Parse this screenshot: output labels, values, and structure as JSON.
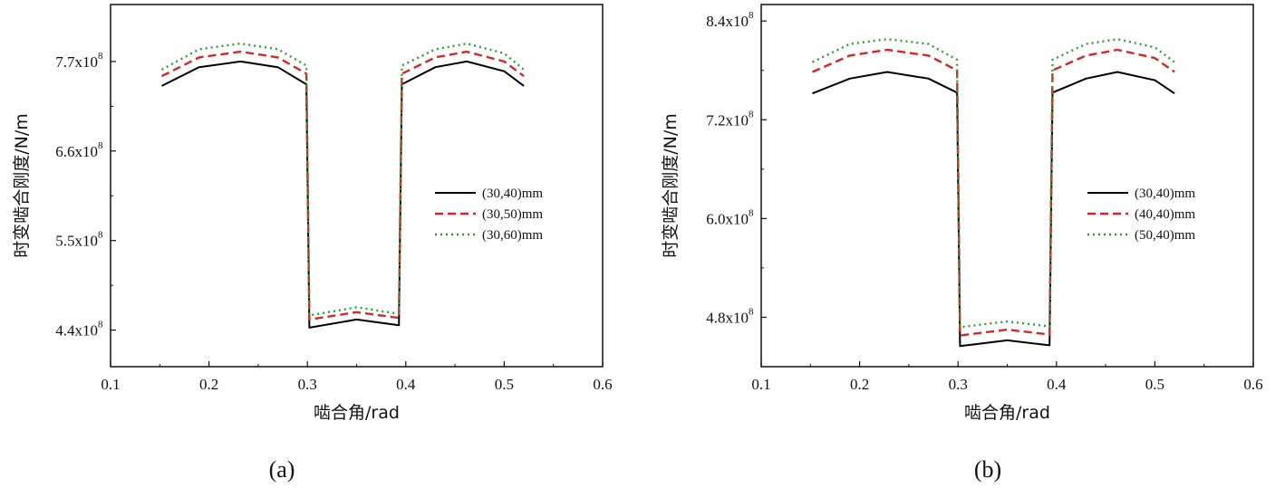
{
  "chart_data": [
    {
      "type": "line",
      "panel_label": "(a)",
      "xlabel": "啮合角/rad",
      "ylabel": "时变啮合刚度/N/m",
      "xlim": [
        0.1,
        0.6
      ],
      "ylim": [
        3.95,
        8.4
      ],
      "xticks": [
        0.1,
        0.2,
        0.3,
        0.4,
        0.5,
        0.6
      ],
      "xtick_labels": [
        "0.1",
        "0.2",
        "0.3",
        "0.4",
        "0.5",
        "0.6"
      ],
      "yticks": [
        4.4,
        5.5,
        6.6,
        7.7
      ],
      "ytick_labels": [
        "4.4x10",
        "5.5x10",
        "6.6x10",
        "7.7x10"
      ],
      "ytick_exponent": "8",
      "legend_position": "right",
      "series": [
        {
          "name": "(30,40)mm",
          "color": "#000000",
          "style": "solid",
          "x": [
            0.152,
            0.19,
            0.232,
            0.27,
            0.299,
            0.302,
            0.35,
            0.393,
            0.396,
            0.43,
            0.462,
            0.5,
            0.52
          ],
          "y": [
            7.4,
            7.63,
            7.7,
            7.63,
            7.42,
            4.43,
            4.53,
            4.46,
            7.42,
            7.63,
            7.7,
            7.58,
            7.4
          ]
        },
        {
          "name": "(30,50)mm",
          "color": "#d62728",
          "style": "dashed",
          "x": [
            0.152,
            0.19,
            0.232,
            0.27,
            0.299,
            0.302,
            0.35,
            0.393,
            0.396,
            0.43,
            0.462,
            0.5,
            0.52
          ],
          "y": [
            7.52,
            7.75,
            7.82,
            7.75,
            7.55,
            4.53,
            4.62,
            4.55,
            7.55,
            7.75,
            7.82,
            7.7,
            7.52
          ]
        },
        {
          "name": "(30,60)mm",
          "color": "#2ca02c",
          "style": "dotted",
          "x": [
            0.152,
            0.19,
            0.232,
            0.27,
            0.299,
            0.302,
            0.35,
            0.393,
            0.396,
            0.43,
            0.462,
            0.5,
            0.52
          ],
          "y": [
            7.6,
            7.85,
            7.92,
            7.85,
            7.65,
            4.58,
            4.68,
            4.6,
            7.65,
            7.85,
            7.92,
            7.8,
            7.6
          ]
        }
      ]
    },
    {
      "type": "line",
      "panel_label": "(b)",
      "xlabel": "啮合角/rad",
      "ylabel": "时变啮合刚度/N/m",
      "xlim": [
        0.1,
        0.6
      ],
      "ylim": [
        4.2,
        8.6
      ],
      "xticks": [
        0.1,
        0.2,
        0.3,
        0.4,
        0.5,
        0.6
      ],
      "xtick_labels": [
        "0.1",
        "0.2",
        "0.3",
        "0.4",
        "0.5",
        "0.6"
      ],
      "yticks": [
        4.8,
        6.0,
        7.2,
        8.4
      ],
      "ytick_labels": [
        "4.8x10",
        "6.0x10",
        "7.2x10",
        "8.4x10"
      ],
      "ytick_exponent": "8",
      "legend_position": "right",
      "series": [
        {
          "name": "(30,40)mm",
          "color": "#000000",
          "style": "solid",
          "x": [
            0.152,
            0.19,
            0.228,
            0.27,
            0.299,
            0.302,
            0.35,
            0.393,
            0.396,
            0.43,
            0.462,
            0.5,
            0.52
          ],
          "y": [
            7.52,
            7.7,
            7.78,
            7.7,
            7.53,
            4.45,
            4.52,
            4.46,
            7.53,
            7.7,
            7.78,
            7.68,
            7.52
          ]
        },
        {
          "name": "(40,40)mm",
          "color": "#d62728",
          "style": "dashed",
          "x": [
            0.152,
            0.19,
            0.228,
            0.27,
            0.299,
            0.302,
            0.35,
            0.393,
            0.396,
            0.43,
            0.462,
            0.5,
            0.52
          ],
          "y": [
            7.78,
            7.98,
            8.05,
            7.98,
            7.8,
            4.58,
            4.65,
            4.59,
            7.8,
            7.98,
            8.05,
            7.95,
            7.78
          ]
        },
        {
          "name": "(50,40)mm",
          "color": "#2ca02c",
          "style": "dotted",
          "x": [
            0.152,
            0.19,
            0.228,
            0.27,
            0.299,
            0.302,
            0.35,
            0.393,
            0.396,
            0.43,
            0.462,
            0.5,
            0.52
          ],
          "y": [
            7.9,
            8.12,
            8.18,
            8.12,
            7.93,
            4.68,
            4.75,
            4.69,
            7.93,
            8.12,
            8.18,
            8.08,
            7.9
          ]
        }
      ]
    }
  ]
}
